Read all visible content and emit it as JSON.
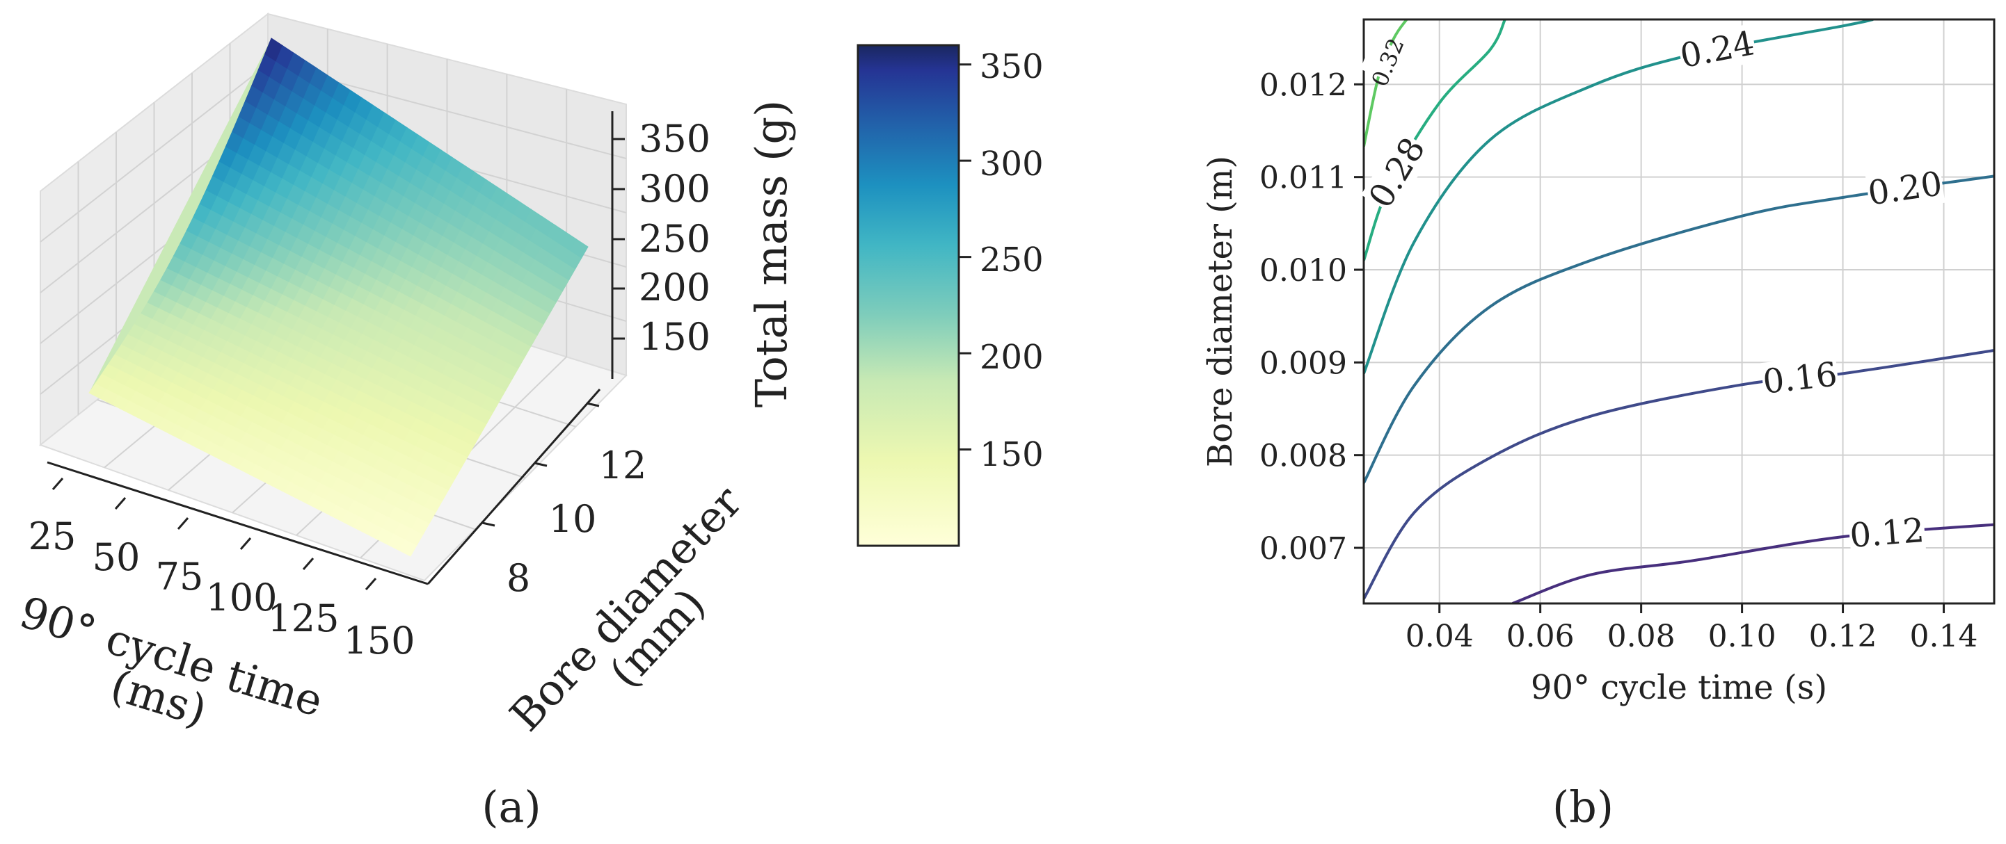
{
  "panels": {
    "a": "(a)",
    "b": "(b)"
  },
  "chart_data": [
    {
      "type": "surface3d",
      "panel": "(a)",
      "x_label": "90° cycle time\n(ms)",
      "y_label": "Bore diameter\n(mm)",
      "z_label": "Total mass (g)",
      "x_ticks": [
        "25",
        "50",
        "75",
        "100",
        "125",
        "150"
      ],
      "y_ticks": [
        "8",
        "10",
        "12"
      ],
      "z_ticks": [
        "150",
        "200",
        "250",
        "300",
        "350"
      ],
      "x_range": [
        25,
        150
      ],
      "y_range": [
        6.4,
        12.7
      ],
      "z_range": [
        100,
        360
      ],
      "corner_values": {
        "x25_y12.7": 360,
        "x150_y12.7": 230,
        "x25_y6.4": 135,
        "x150_y6.4": 105
      },
      "colormap": "YlGnBu",
      "colorbar": {
        "label": "Total mass (g)",
        "range": [
          100,
          360
        ],
        "ticks": [
          "150",
          "200",
          "250",
          "300",
          "350"
        ]
      },
      "grid": true
    },
    {
      "type": "contour",
      "panel": "(b)",
      "x_label": "90° cycle time (s)",
      "y_label": "Bore diameter (m)",
      "x_range": [
        0.025,
        0.15
      ],
      "y_range": [
        0.0064,
        0.0127
      ],
      "x_ticks": [
        "0.04",
        "0.06",
        "0.08",
        "0.10",
        "0.12",
        "0.14"
      ],
      "y_ticks": [
        "0.007",
        "0.008",
        "0.009",
        "0.010",
        "0.011",
        "0.012"
      ],
      "grid": true,
      "levels": [
        {
          "label": "0.12",
          "value": 0.12,
          "color": "#472f7d",
          "points": [
            [
              0.0545,
              0.0064
            ],
            [
              0.07,
              0.00671
            ],
            [
              0.09,
              0.00686
            ],
            [
              0.12,
              0.00712
            ],
            [
              0.15,
              0.00725
            ]
          ]
        },
        {
          "label": "0.16",
          "value": 0.16,
          "color": "#3f4a8a",
          "points": [
            [
              0.025,
              0.00645
            ],
            [
              0.035,
              0.00738
            ],
            [
              0.05,
              0.00797
            ],
            [
              0.07,
              0.00842
            ],
            [
              0.1,
              0.00876
            ],
            [
              0.12,
              0.00888
            ],
            [
              0.15,
              0.00913
            ]
          ]
        },
        {
          "label": "0.20",
          "value": 0.2,
          "color": "#2e6f8e",
          "points": [
            [
              0.025,
              0.0077
            ],
            [
              0.035,
              0.00875
            ],
            [
              0.05,
              0.0096
            ],
            [
              0.07,
              0.0101
            ],
            [
              0.1,
              0.01058
            ],
            [
              0.12,
              0.01078
            ],
            [
              0.15,
              0.01101
            ]
          ]
        },
        {
          "label": "0.24",
          "value": 0.24,
          "color": "#21918c",
          "points": [
            [
              0.025,
              0.00888
            ],
            [
              0.035,
              0.0103
            ],
            [
              0.05,
              0.0114
            ],
            [
              0.07,
              0.01198
            ],
            [
              0.09,
              0.01232
            ],
            [
              0.12,
              0.01263
            ],
            [
              0.126,
              0.0127
            ]
          ]
        },
        {
          "label": "0.28",
          "value": 0.28,
          "color": "#27ad81",
          "points": [
            [
              0.025,
              0.0101
            ],
            [
              0.03,
              0.0109
            ],
            [
              0.04,
              0.0118
            ],
            [
              0.05,
              0.01237
            ],
            [
              0.053,
              0.0127
            ]
          ]
        },
        {
          "label": "0.32",
          "value": 0.32,
          "color": "#5ec962",
          "points": [
            [
              0.025,
              0.01133
            ],
            [
              0.028,
              0.0121
            ],
            [
              0.031,
              0.0125
            ],
            [
              0.0335,
              0.0127
            ]
          ]
        }
      ]
    }
  ]
}
